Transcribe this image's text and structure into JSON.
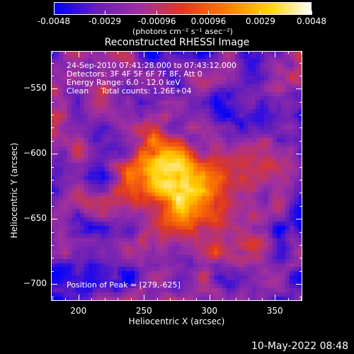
{
  "colorbar": {
    "tick_labels": [
      "-0.0048",
      "-0.0029",
      "-0.00096",
      "0.00096",
      "0.0029",
      "0.0048"
    ],
    "tick_values": [
      -0.0048,
      -0.0029,
      -0.00096,
      0.00096,
      0.0029,
      0.0048
    ],
    "unit_label": "(photons cm⁻² s⁻¹ asec⁻²)",
    "range": [
      -0.0048,
      0.0048
    ],
    "colors": [
      "#0000ff",
      "#6a1fb8",
      "#a030a0",
      "#e03820",
      "#ff7a00",
      "#ffd000",
      "#ffffff"
    ]
  },
  "chart_data": {
    "type": "heatmap",
    "title": "Reconstructed RHESSI Image",
    "xlabel": "Heliocentric X (arcsec)",
    "ylabel": "Heliocentric Y (arcsec)",
    "xlim": [
      179,
      371
    ],
    "ylim": [
      -713,
      -521
    ],
    "x_ticks": [
      200,
      250,
      300,
      350
    ],
    "y_ticks": [
      -550,
      -600,
      -650,
      -700
    ],
    "x_tick_labels": [
      "200",
      "250",
      "300",
      "350"
    ],
    "y_tick_labels": [
      "−550",
      "−600",
      "−650",
      "−700"
    ],
    "annotations": [
      "24-Sep-2010 07:41:28.000 to 07:43:12.000",
      "Detectors: 3F 4F 5F 6F 7F 8F, Att 0",
      "Energy Range: 6.0 - 12.0 keV",
      "Clean     Total counts: 1.26E+04"
    ],
    "peak_label": "Position of Peak = [279,-625]",
    "peak_position": [
      279,
      -625
    ],
    "total_counts": 12600,
    "energy_range_kev": [
      6.0,
      12.0
    ]
  },
  "footer": {
    "timestamp": "10-May-2022 08:48"
  }
}
